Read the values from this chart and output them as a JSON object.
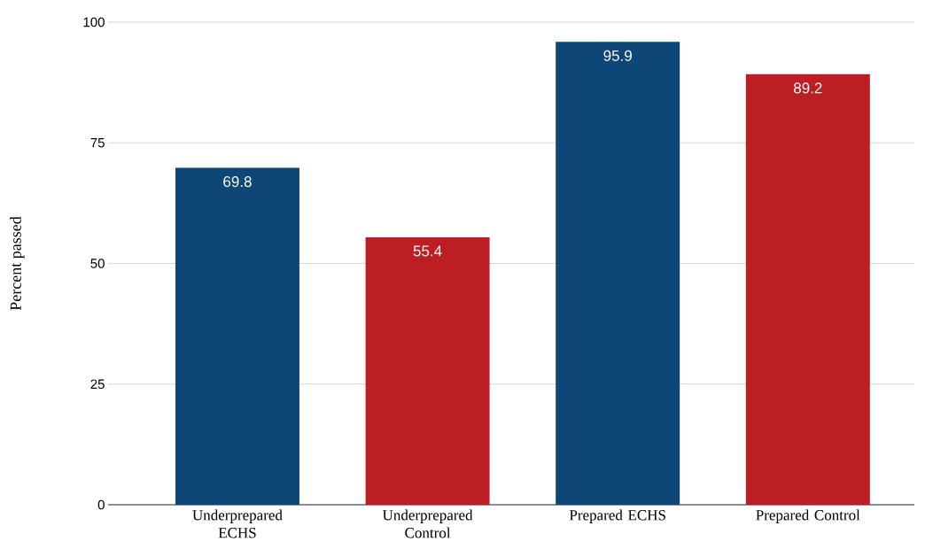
{
  "chart_data": {
    "type": "bar",
    "ylabel": "Percent passed",
    "categories": [
      "Underprepared ECHS",
      "Underprepared Control",
      "Prepared ECHS",
      "Prepared Control"
    ],
    "values": [
      69.8,
      55.4,
      95.9,
      89.2
    ],
    "colors": [
      "#0d4677",
      "#bd1e24",
      "#0d4677",
      "#bd1e24"
    ],
    "ylim": [
      0,
      100
    ],
    "yticks": [
      0,
      25,
      50,
      75,
      100
    ],
    "grid": "y",
    "data_labels": true
  }
}
